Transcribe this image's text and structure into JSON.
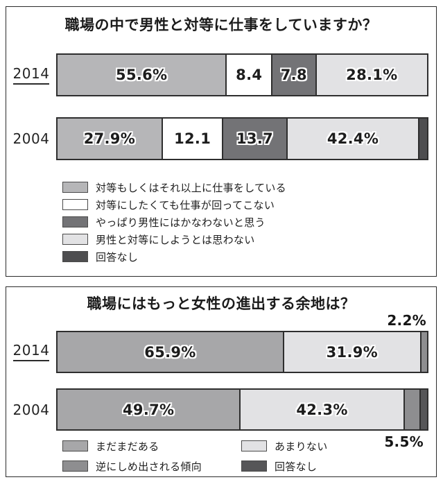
{
  "chart_data": [
    {
      "type": "bar",
      "orientation": "horizontal",
      "stacked": true,
      "unit": "%",
      "xlim": [
        0,
        100
      ],
      "title": "職場の中で男性と対等に仕事をしていますか？",
      "categories": [
        "2014",
        "2004"
      ],
      "category_underline": [
        true,
        false
      ],
      "series": [
        {
          "name": "対等もしくはそれ以上に仕事をしている",
          "color": "#b6b6b8",
          "values": [
            55.6,
            27.9
          ],
          "labels": [
            "55.6%",
            "27.9%"
          ]
        },
        {
          "name": "対等にしたくても仕事が回ってこない",
          "color": "#ffffff",
          "values": [
            8.4,
            12.1
          ],
          "labels": [
            "8.4",
            "12.1"
          ]
        },
        {
          "name": "やっぱり男性にはかなわないと思う",
          "color": "#737376",
          "values": [
            7.8,
            13.7
          ],
          "labels": [
            "7.8",
            "13.7"
          ]
        },
        {
          "name": "男性と対等にしようとは思わない",
          "color": "#e2e2e4",
          "values": [
            28.1,
            42.4
          ],
          "labels": [
            "28.1%",
            "42.4%"
          ]
        },
        {
          "name": "回答なし",
          "color": "#4e4e50",
          "values": [
            0,
            3.9
          ],
          "labels": [
            "",
            ""
          ]
        }
      ],
      "legend_layout": "vertical"
    },
    {
      "type": "bar",
      "orientation": "horizontal",
      "stacked": true,
      "unit": "%",
      "xlim": [
        0,
        100
      ],
      "title": "職場にはもっと女性の進出する余地は？",
      "categories": [
        "2014",
        "2004"
      ],
      "category_underline": [
        true,
        false
      ],
      "series": [
        {
          "name": "まだまだある",
          "color": "#a7a7a9",
          "values": [
            65.9,
            49.7
          ],
          "labels": [
            "65.9%",
            "49.7%"
          ]
        },
        {
          "name": "あまりない",
          "color": "#e2e2e4",
          "values": [
            31.9,
            42.3
          ],
          "labels": [
            "31.9%",
            "42.3%"
          ]
        },
        {
          "name": "逆にしめ出される傾向",
          "color": "#8e8e90",
          "values": [
            2.2,
            5.5
          ],
          "labels": [
            "",
            ""
          ]
        },
        {
          "name": "回答なし",
          "color": "#565658",
          "values": [
            0,
            2.5
          ],
          "labels": [
            "",
            ""
          ]
        }
      ],
      "legend_layout": "grid-2col",
      "callouts": [
        {
          "text": "2.2%",
          "position": "above-right",
          "refers_to": "2014 逆にしめ出される傾向"
        },
        {
          "text": "5.5%",
          "position": "below-right",
          "refers_to": "2004 逆にしめ出される傾向"
        }
      ]
    }
  ]
}
